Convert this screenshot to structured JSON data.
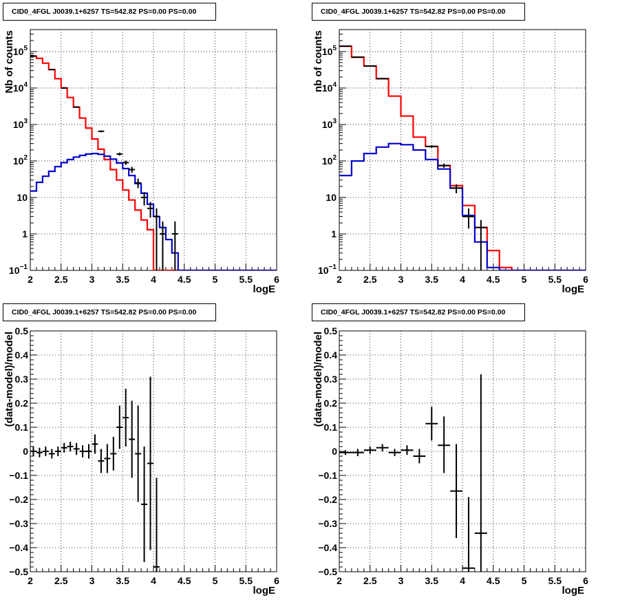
{
  "panels": [
    {
      "title": "CID0_4FGL J0039.1+6257 TS=542.82 PS=0.00 PS=0.00",
      "chart_data": {
        "type": "line",
        "yscale": "log",
        "xlim": [
          2,
          6
        ],
        "ylim": [
          0.1,
          400000
        ],
        "xlabel": "logE",
        "ylabel": "Nb of counts",
        "grid": true,
        "x_ticks": [
          "2",
          "2.5",
          "3",
          "3.5",
          "4",
          "4.5",
          "5",
          "5.5",
          "6"
        ],
        "y_ticks": [
          {
            "value": 0.1,
            "base": "10",
            "exp": "−1"
          },
          {
            "value": 1,
            "base": "1",
            "exp": ""
          },
          {
            "value": 10,
            "base": "10",
            "exp": ""
          },
          {
            "value": 100,
            "base": "10",
            "exp": "2"
          },
          {
            "value": 1000,
            "base": "10",
            "exp": "3"
          },
          {
            "value": 10000,
            "base": "10",
            "exp": "4"
          },
          {
            "value": 100000,
            "base": "10",
            "exp": "5"
          }
        ],
        "series": [
          {
            "color": "#ff0000",
            "kind": "step",
            "edges": [
              2.0,
              2.1,
              2.2,
              2.3,
              2.4,
              2.5,
              2.6,
              2.7,
              2.8,
              2.9,
              3.0,
              3.1,
              3.2,
              3.3,
              3.4,
              3.5,
              3.6,
              3.7,
              3.8,
              3.9,
              4.0,
              4.1,
              4.2,
              4.3,
              4.4,
              4.5,
              4.6,
              4.7,
              4.8,
              4.9,
              5.0,
              5.1,
              5.2,
              5.3,
              5.4,
              5.5,
              5.6,
              5.7,
              5.8,
              5.9,
              6.0
            ],
            "values": [
              75000,
              65000,
              48000,
              32000,
              18000,
              10000,
              5500,
              3000,
              1500,
              800,
              400,
              210,
              110,
              58,
              30,
              16,
              8.5,
              4.5,
              2.4,
              1.3,
              0.1,
              0.1,
              0.1,
              0.1,
              0.1,
              0.1,
              0.1,
              0.1,
              0.1,
              0.1,
              0.1,
              0.1,
              0.1,
              0.1,
              0.1,
              0.1,
              0.1,
              0.1,
              0.1,
              0.1
            ]
          },
          {
            "color": "#0000cc",
            "kind": "step",
            "edges": [
              2.0,
              2.1,
              2.2,
              2.3,
              2.4,
              2.5,
              2.6,
              2.7,
              2.8,
              2.9,
              3.0,
              3.1,
              3.2,
              3.3,
              3.4,
              3.5,
              3.6,
              3.7,
              3.8,
              3.9,
              4.0,
              4.1,
              4.2,
              4.3,
              4.4,
              4.5,
              4.6,
              4.7,
              4.8,
              4.9,
              5.0,
              5.1,
              5.2,
              5.3,
              5.4,
              5.5,
              5.6,
              5.7,
              5.8,
              5.9,
              6.0
            ],
            "values": [
              15,
              26,
              38,
              52,
              70,
              90,
              110,
              128,
              142,
              155,
              160,
              152,
              135,
              112,
              88,
              62,
              40,
              24,
              13,
              6.5,
              3,
              1.5,
              0.7,
              0.3,
              0.1,
              0.1,
              0.1,
              0.1,
              0.1,
              0.1,
              0.1,
              0.1,
              0.1,
              0.1,
              0.1,
              0.1,
              0.1,
              0.1,
              0.1,
              0.1
            ]
          }
        ],
        "points": [
          {
            "x": 2.05,
            "y": 75000,
            "xe": 0.05,
            "lo": 74000,
            "hi": 76000
          },
          {
            "x": 2.35,
            "y": 32000,
            "xe": 0.05,
            "lo": 31500,
            "hi": 32500
          },
          {
            "x": 2.55,
            "y": 10000,
            "xe": 0.05,
            "lo": 9800,
            "hi": 10200
          },
          {
            "x": 2.75,
            "y": 3000,
            "xe": 0.05,
            "lo": 2900,
            "hi": 3100
          },
          {
            "x": 3.15,
            "y": 650,
            "xe": 0.05,
            "lo": 610,
            "hi": 690
          },
          {
            "x": 3.45,
            "y": 155,
            "xe": 0.05,
            "lo": 140,
            "hi": 170
          },
          {
            "x": 3.55,
            "y": 90,
            "xe": 0.05,
            "lo": 78,
            "hi": 102
          },
          {
            "x": 3.65,
            "y": 58,
            "xe": 0.05,
            "lo": 47,
            "hi": 69
          },
          {
            "x": 3.75,
            "y": 25,
            "xe": 0.05,
            "lo": 18,
            "hi": 33
          },
          {
            "x": 3.85,
            "y": 10,
            "xe": 0.05,
            "lo": 6,
            "hi": 14
          },
          {
            "x": 3.95,
            "y": 5,
            "xe": 0.05,
            "lo": 2.8,
            "hi": 7.5
          },
          {
            "x": 4.05,
            "y": 3,
            "xe": 0.05,
            "lo": 0.1,
            "hi": 5
          },
          {
            "x": 4.15,
            "y": 1,
            "xe": 0.05,
            "lo": 0.1,
            "hi": 2.2
          },
          {
            "x": 4.35,
            "y": 1,
            "xe": 0.05,
            "lo": 0.1,
            "hi": 2.2
          }
        ]
      }
    },
    {
      "title": "CID0_4FGL J0039.1+6257 TS=542.82 PS=0.00 PS=0.00",
      "chart_data": {
        "type": "line",
        "yscale": "log",
        "xlim": [
          2,
          6
        ],
        "ylim": [
          0.1,
          400000
        ],
        "xlabel": "logE",
        "ylabel": "nb of counts",
        "grid": true,
        "x_ticks": [
          "2",
          "2.5",
          "3",
          "3.5",
          "4",
          "4.5",
          "5",
          "5.5",
          "6"
        ],
        "y_ticks": [
          {
            "value": 0.1,
            "base": "10",
            "exp": "−1"
          },
          {
            "value": 1,
            "base": "1",
            "exp": ""
          },
          {
            "value": 10,
            "base": "10",
            "exp": ""
          },
          {
            "value": 100,
            "base": "10",
            "exp": "2"
          },
          {
            "value": 1000,
            "base": "10",
            "exp": "3"
          },
          {
            "value": 10000,
            "base": "10",
            "exp": "4"
          },
          {
            "value": 100000,
            "base": "10",
            "exp": "5"
          }
        ],
        "series": [
          {
            "color": "#ff0000",
            "kind": "step",
            "edges": [
              2.0,
              2.2,
              2.4,
              2.6,
              2.8,
              3.0,
              3.2,
              3.4,
              3.6,
              3.8,
              4.0,
              4.2,
              4.4,
              4.6,
              4.8,
              5.0,
              5.2,
              5.4,
              5.6,
              5.8,
              6.0
            ],
            "values": [
              140000,
              70000,
              40000,
              18000,
              6000,
              1700,
              450,
              250,
              75,
              21,
              6,
              1.5,
              0.35,
              0.12,
              0.1,
              0.1,
              0.1,
              0.1,
              0.1,
              0.1
            ]
          },
          {
            "color": "#0000cc",
            "kind": "step",
            "edges": [
              2.0,
              2.2,
              2.4,
              2.6,
              2.8,
              3.0,
              3.2,
              3.4,
              3.6,
              3.8,
              4.0,
              4.2,
              4.4,
              4.6,
              4.8,
              5.0,
              5.2,
              5.4,
              5.6,
              5.8,
              6.0
            ],
            "values": [
              40,
              100,
              160,
              240,
              300,
              280,
              200,
              110,
              60,
              18,
              3.2,
              0.6,
              0.12,
              0.1,
              0.1,
              0.1,
              0.1,
              0.1,
              0.1,
              0.1
            ]
          }
        ],
        "points": [
          {
            "x": 2.1,
            "y": 140000,
            "xe": 0.1,
            "lo": 138000,
            "hi": 142000
          },
          {
            "x": 2.3,
            "y": 70000,
            "xe": 0.1,
            "lo": 69000,
            "hi": 71000
          },
          {
            "x": 2.5,
            "y": 40000,
            "xe": 0.1,
            "lo": 39500,
            "hi": 40500
          },
          {
            "x": 2.7,
            "y": 18000,
            "xe": 0.1,
            "lo": 17700,
            "hi": 18300
          },
          {
            "x": 3.5,
            "y": 250,
            "xe": 0.1,
            "lo": 230,
            "hi": 270
          },
          {
            "x": 3.7,
            "y": 75,
            "xe": 0.1,
            "lo": 65,
            "hi": 85
          },
          {
            "x": 3.9,
            "y": 18,
            "xe": 0.1,
            "lo": 13,
            "hi": 23
          },
          {
            "x": 4.1,
            "y": 3,
            "xe": 0.1,
            "lo": 1.4,
            "hi": 5
          },
          {
            "x": 4.3,
            "y": 1.5,
            "xe": 0.1,
            "lo": 0.1,
            "hi": 2.4
          }
        ]
      }
    },
    {
      "title": "CID0_4FGL J0039.1+6257 TS=542.82 PS=0.00 PS=0.00",
      "chart_data": {
        "type": "scatter",
        "yscale": "linear",
        "xlim": [
          2,
          6
        ],
        "ylim": [
          -0.5,
          0.5
        ],
        "xlabel": "logE",
        "ylabel": "(data-model)/model",
        "grid": true,
        "x_ticks": [
          "2",
          "2.5",
          "3",
          "3.5",
          "4",
          "4.5",
          "5",
          "5.5",
          "6"
        ],
        "y_ticks": [
          {
            "value": -0.5,
            "label": "−0.5"
          },
          {
            "value": -0.4,
            "label": "−0.4"
          },
          {
            "value": -0.3,
            "label": "−0.3"
          },
          {
            "value": -0.2,
            "label": "−0.2"
          },
          {
            "value": -0.1,
            "label": "−0.1"
          },
          {
            "value": 0,
            "label": "0"
          },
          {
            "value": 0.1,
            "label": "0.1"
          },
          {
            "value": 0.2,
            "label": "0.2"
          },
          {
            "value": 0.3,
            "label": "0.3"
          },
          {
            "value": 0.4,
            "label": "0.4"
          },
          {
            "value": 0.5,
            "label": "0.5"
          }
        ],
        "series": [],
        "points": [
          {
            "x": 2.05,
            "y": 0.0,
            "xe": 0.05,
            "lo": -0.02,
            "hi": 0.02
          },
          {
            "x": 2.15,
            "y": -0.005,
            "xe": 0.05,
            "lo": -0.025,
            "hi": 0.015
          },
          {
            "x": 2.25,
            "y": 0.0,
            "xe": 0.05,
            "lo": -0.02,
            "hi": 0.02
          },
          {
            "x": 2.35,
            "y": -0.01,
            "xe": 0.05,
            "lo": -0.03,
            "hi": 0.01
          },
          {
            "x": 2.45,
            "y": 0.0,
            "xe": 0.05,
            "lo": -0.02,
            "hi": 0.02
          },
          {
            "x": 2.55,
            "y": 0.015,
            "xe": 0.05,
            "lo": -0.005,
            "hi": 0.035
          },
          {
            "x": 2.65,
            "y": 0.02,
            "xe": 0.05,
            "lo": 0.0,
            "hi": 0.04
          },
          {
            "x": 2.75,
            "y": 0.01,
            "xe": 0.05,
            "lo": -0.015,
            "hi": 0.035
          },
          {
            "x": 2.85,
            "y": 0.0,
            "xe": 0.05,
            "lo": -0.025,
            "hi": 0.025
          },
          {
            "x": 2.95,
            "y": 0.0,
            "xe": 0.05,
            "lo": -0.03,
            "hi": 0.03
          },
          {
            "x": 3.05,
            "y": 0.03,
            "xe": 0.05,
            "lo": -0.01,
            "hi": 0.07
          },
          {
            "x": 3.15,
            "y": -0.04,
            "xe": 0.05,
            "lo": -0.09,
            "hi": 0.01
          },
          {
            "x": 3.25,
            "y": -0.03,
            "xe": 0.05,
            "lo": -0.09,
            "hi": 0.03
          },
          {
            "x": 3.35,
            "y": -0.01,
            "xe": 0.05,
            "lo": -0.08,
            "hi": 0.06
          },
          {
            "x": 3.45,
            "y": 0.1,
            "xe": 0.05,
            "lo": 0.01,
            "hi": 0.19
          },
          {
            "x": 3.55,
            "y": 0.14,
            "xe": 0.05,
            "lo": 0.02,
            "hi": 0.26
          },
          {
            "x": 3.65,
            "y": 0.05,
            "xe": 0.05,
            "lo": -0.11,
            "hi": 0.21
          },
          {
            "x": 3.75,
            "y": -0.01,
            "xe": 0.05,
            "lo": -0.21,
            "hi": 0.19
          },
          {
            "x": 3.85,
            "y": -0.22,
            "xe": 0.05,
            "lo": -0.46,
            "hi": 0.02
          },
          {
            "x": 3.95,
            "y": -0.05,
            "xe": 0.05,
            "lo": -0.41,
            "hi": 0.31
          },
          {
            "x": 4.05,
            "y": -0.48,
            "xe": 0.05,
            "lo": -0.5,
            "hi": -0.11
          }
        ]
      }
    },
    {
      "title": "CID0_4FGL J0039.1+6257 TS=542.82 PS=0.00 PS=0.00",
      "chart_data": {
        "type": "scatter",
        "yscale": "linear",
        "xlim": [
          2,
          6
        ],
        "ylim": [
          -0.5,
          0.5
        ],
        "xlabel": "logE",
        "ylabel": "(data-model)/model",
        "grid": true,
        "x_ticks": [
          "2",
          "2.5",
          "3",
          "3.5",
          "4",
          "4.5",
          "5",
          "5.5",
          "6"
        ],
        "y_ticks": [
          {
            "value": -0.5,
            "label": "−0.5"
          },
          {
            "value": -0.4,
            "label": "−0.4"
          },
          {
            "value": -0.3,
            "label": "−0.3"
          },
          {
            "value": -0.2,
            "label": "−0.2"
          },
          {
            "value": -0.1,
            "label": "−0.1"
          },
          {
            "value": 0,
            "label": "0"
          },
          {
            "value": 0.1,
            "label": "0.1"
          },
          {
            "value": 0.2,
            "label": "0.2"
          },
          {
            "value": 0.3,
            "label": "0.3"
          },
          {
            "value": 0.4,
            "label": "0.4"
          },
          {
            "value": 0.5,
            "label": "0.5"
          }
        ],
        "series": [],
        "points": [
          {
            "x": 2.1,
            "y": -0.005,
            "xe": 0.1,
            "lo": -0.015,
            "hi": 0.005
          },
          {
            "x": 2.3,
            "y": -0.005,
            "xe": 0.1,
            "lo": -0.02,
            "hi": 0.01
          },
          {
            "x": 2.5,
            "y": 0.005,
            "xe": 0.1,
            "lo": -0.01,
            "hi": 0.02
          },
          {
            "x": 2.7,
            "y": 0.015,
            "xe": 0.1,
            "lo": 0.0,
            "hi": 0.03
          },
          {
            "x": 2.9,
            "y": -0.005,
            "xe": 0.1,
            "lo": -0.02,
            "hi": 0.01
          },
          {
            "x": 3.1,
            "y": 0.005,
            "xe": 0.1,
            "lo": -0.015,
            "hi": 0.025
          },
          {
            "x": 3.3,
            "y": -0.02,
            "xe": 0.1,
            "lo": -0.05,
            "hi": 0.01
          },
          {
            "x": 3.5,
            "y": 0.115,
            "xe": 0.1,
            "lo": 0.045,
            "hi": 0.185
          },
          {
            "x": 3.7,
            "y": 0.025,
            "xe": 0.1,
            "lo": -0.09,
            "hi": 0.145
          },
          {
            "x": 3.9,
            "y": -0.165,
            "xe": 0.1,
            "lo": -0.36,
            "hi": 0.03
          },
          {
            "x": 4.1,
            "y": -0.485,
            "xe": 0.1,
            "lo": -0.5,
            "hi": -0.19
          },
          {
            "x": 4.3,
            "y": -0.34,
            "xe": 0.1,
            "lo": -0.5,
            "hi": 0.32
          }
        ]
      }
    }
  ]
}
